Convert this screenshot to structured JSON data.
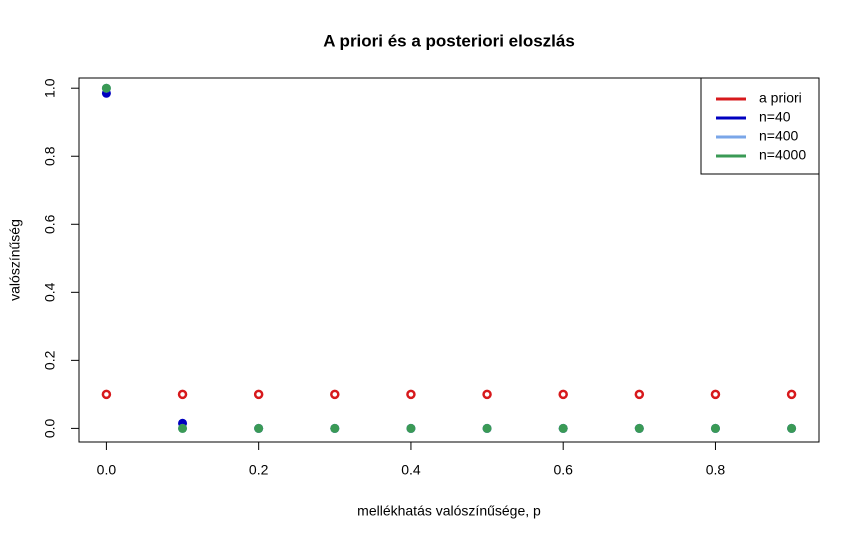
{
  "chart_data": {
    "type": "scatter",
    "title": "A priori és a posteriori eloszlás",
    "xlabel": "mellékhatás valószínűsége, p",
    "ylabel": "valószínűség",
    "x": [
      0,
      0.1,
      0.2,
      0.3,
      0.4,
      0.5,
      0.6,
      0.7,
      0.8,
      0.9
    ],
    "series": [
      {
        "name": "a priori",
        "color": "#d7191c",
        "values": [
          0.1,
          0.1,
          0.1,
          0.1,
          0.1,
          0.1,
          0.1,
          0.1,
          0.1,
          0.1
        ]
      },
      {
        "name": "n=40",
        "color": "#0000c0",
        "values": [
          0.985,
          0.015,
          0,
          0,
          0,
          0,
          0,
          0,
          0,
          0
        ]
      },
      {
        "name": "n=400",
        "color": "#7aa6e8",
        "values": [
          1,
          0,
          0,
          0,
          0,
          0,
          0,
          0,
          0,
          0
        ]
      },
      {
        "name": "n=4000",
        "color": "#3a9a55",
        "values": [
          1,
          0,
          0,
          0,
          0,
          0,
          0,
          0,
          0,
          0
        ]
      }
    ],
    "xlim": [
      -0.036,
      0.936
    ],
    "ylim": [
      -0.04,
      1.03
    ],
    "xticks": [
      {
        "value": 0,
        "label": "0.0"
      },
      0.2,
      0.4,
      0.6,
      0.8
    ],
    "yticks": [
      {
        "value": 0,
        "label": "0.0"
      },
      0.2,
      0.4,
      0.6,
      0.8,
      {
        "value": 1,
        "label": "1.0"
      }
    ],
    "legend": "topright"
  }
}
